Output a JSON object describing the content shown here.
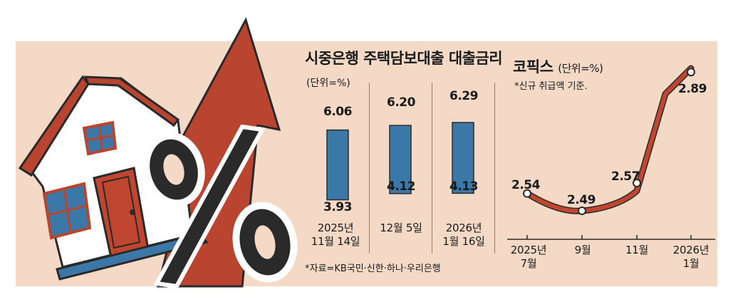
{
  "colors": {
    "background": "#f3d9c6",
    "bar": "#3b78a8",
    "line": "#c0462f",
    "arrow": "#b94530",
    "dark": "#2a2a2a"
  },
  "left_chart": {
    "title": "시중은행 주택담보대출 대출금리",
    "unit": "(단위=%)"
  },
  "right_chart": {
    "title": "코픽스",
    "unit": "(단위=%)",
    "note": "*신규 취급액 기준."
  },
  "source": "*자료=KB국민·신한·하나·우리은행",
  "chart_data": [
    {
      "type": "bar",
      "title": "시중은행 주택담보대출 대출금리",
      "categories": [
        [
          "2025년",
          "11월 14일"
        ],
        [
          "12월 5일"
        ],
        [
          "2026년",
          "1월 16일"
        ]
      ],
      "high": [
        6.06,
        6.2,
        6.29
      ],
      "low": [
        3.93,
        4.12,
        4.13
      ],
      "high_labels": [
        "6.06",
        "6.20",
        "6.29"
      ],
      "low_labels": [
        "3.93",
        "4.12",
        "4.13"
      ]
    },
    {
      "type": "line",
      "title": "코픽스",
      "x": [
        [
          "2025년",
          "7월"
        ],
        [
          "9월"
        ],
        [
          "11월"
        ],
        [
          "2026년",
          "1월"
        ]
      ],
      "points": [
        {
          "month": "2025-07",
          "value": 2.54,
          "label": "2.54"
        },
        {
          "month": "2025-09",
          "value": 2.49,
          "label": "2.49"
        },
        {
          "month": "2025-11",
          "value": 2.57,
          "label": "2.57"
        },
        {
          "month": "2025-12",
          "value": 2.81
        },
        {
          "month": "2026-01",
          "value": 2.89,
          "label": "2.89"
        }
      ]
    }
  ]
}
